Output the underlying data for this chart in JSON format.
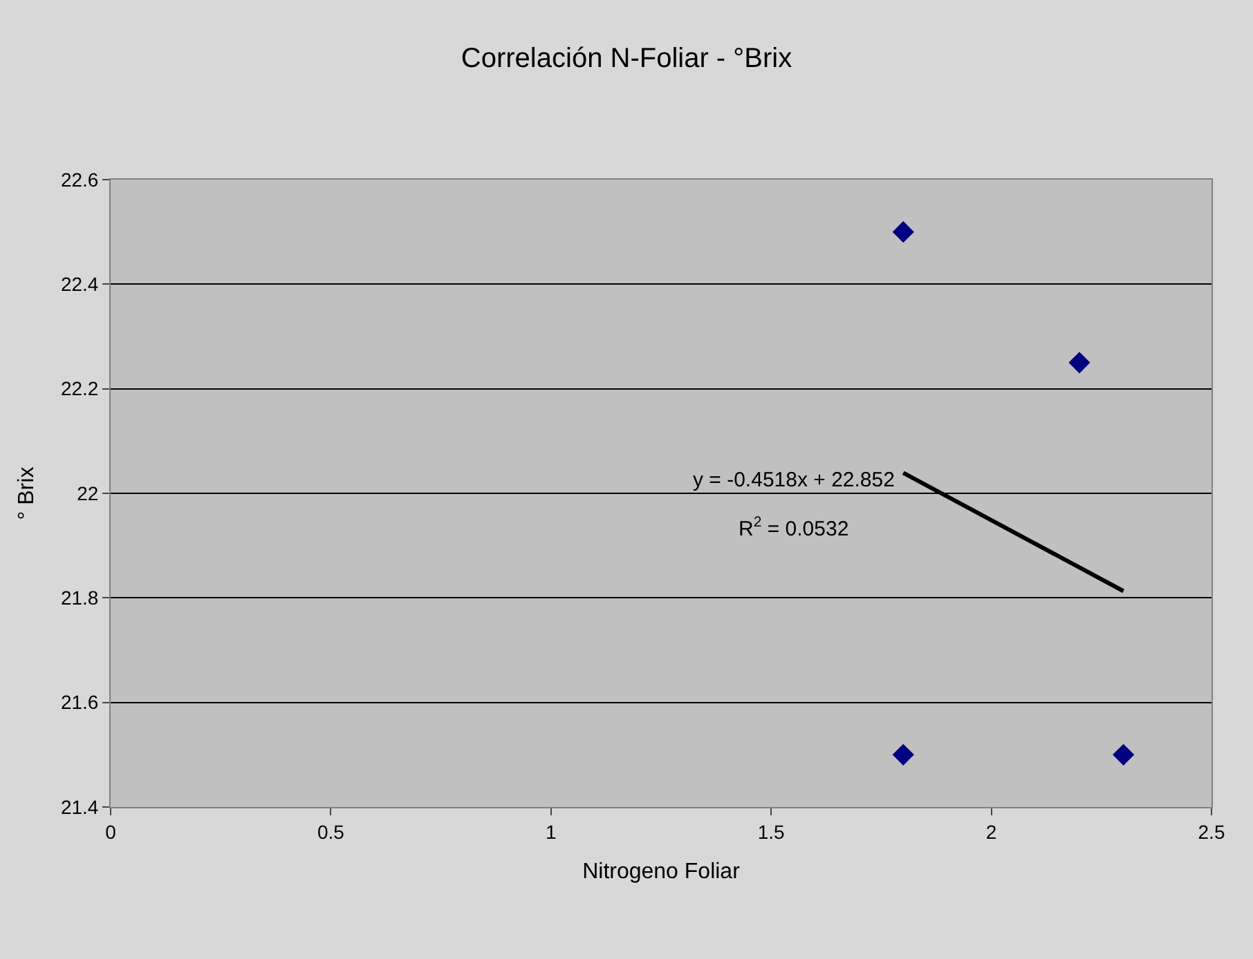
{
  "chart_data": {
    "type": "scatter",
    "title": "Correlación N-Foliar - °Brix",
    "xlabel": "Nitrogeno Foliar",
    "ylabel": "° Brix",
    "series": [
      {
        "color": "#000080",
        "x": [
          1.8,
          2.2,
          1.8,
          2.3
        ],
        "values": [
          22.5,
          22.25,
          21.5,
          21.5
        ],
        "marker": "diamond"
      },
      {
        "type": "line",
        "color": "#000000",
        "x": [
          1.8,
          2.3
        ],
        "values": [
          22.039,
          21.813
        ],
        "marker": "none",
        "line_style": "solid"
      }
    ],
    "annotations": [
      "y = -0.4518x + 22.852",
      "R$^{2}$ = 0.0532"
    ],
    "xlim": [
      0,
      2.5
    ],
    "xticks": [
      0,
      0.5,
      1,
      1.5,
      2,
      2.5
    ],
    "ylim": [
      21.4,
      22.6
    ],
    "yticks": [
      21.4,
      21.6,
      21.8,
      22,
      22.2,
      22.4,
      22.6
    ],
    "grid": "y"
  }
}
